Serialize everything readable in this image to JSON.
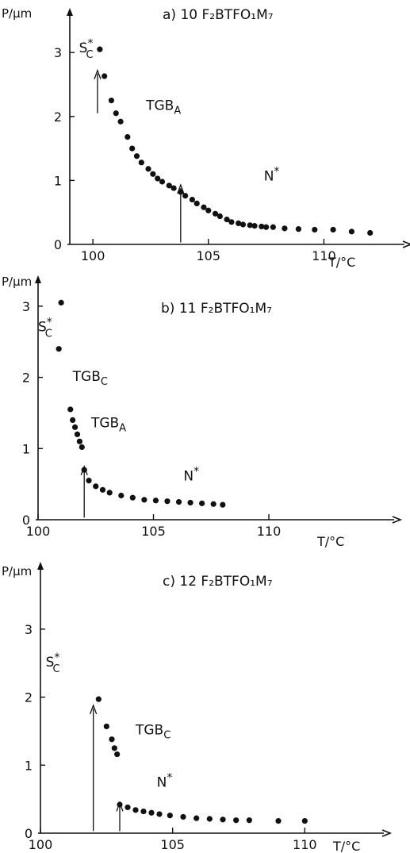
{
  "chart_data": [
    {
      "type": "scatter",
      "title": "a)  10 F₂BTFO₁M₇",
      "xlabel": "T/°C",
      "ylabel": "P/µm",
      "xlim": [
        99,
        112.8
      ],
      "ylim": [
        0,
        3.3
      ],
      "xticks": [
        100,
        105,
        110
      ],
      "yticks": [
        0,
        1,
        2,
        3
      ],
      "x_tick_labels": [
        "100",
        "105",
        "110"
      ],
      "y_tick_labels": [
        "0",
        "1",
        "2",
        "3"
      ],
      "phase_labels": [
        {
          "text": "S",
          "sub": "C",
          "sup": "*",
          "x": 99.4,
          "y": 3.0
        },
        {
          "text": "TGB",
          "sub": "A",
          "sup": "",
          "x": 102.3,
          "y": 2.1
        },
        {
          "text": "N",
          "sub": "",
          "sup": "*",
          "x": 107.4,
          "y": 1.0
        }
      ],
      "arrows": [
        {
          "x": 100.2,
          "y_from": 2.05,
          "y_to": 2.72
        },
        {
          "x": 103.8,
          "y_from": 0.03,
          "y_to": 0.93
        }
      ],
      "points": [
        {
          "x": 100.3,
          "y": 3.05
        },
        {
          "x": 100.5,
          "y": 2.63
        },
        {
          "x": 100.8,
          "y": 2.25
        },
        {
          "x": 101.0,
          "y": 2.05
        },
        {
          "x": 101.2,
          "y": 1.92
        },
        {
          "x": 101.5,
          "y": 1.68
        },
        {
          "x": 101.7,
          "y": 1.5
        },
        {
          "x": 101.9,
          "y": 1.38
        },
        {
          "x": 102.1,
          "y": 1.28
        },
        {
          "x": 102.4,
          "y": 1.18
        },
        {
          "x": 102.6,
          "y": 1.1
        },
        {
          "x": 102.8,
          "y": 1.03
        },
        {
          "x": 103.0,
          "y": 0.98
        },
        {
          "x": 103.3,
          "y": 0.92
        },
        {
          "x": 103.5,
          "y": 0.88
        },
        {
          "x": 103.8,
          "y": 0.82
        },
        {
          "x": 104.0,
          "y": 0.76
        },
        {
          "x": 104.3,
          "y": 0.7
        },
        {
          "x": 104.5,
          "y": 0.64
        },
        {
          "x": 104.8,
          "y": 0.58
        },
        {
          "x": 105.0,
          "y": 0.53
        },
        {
          "x": 105.3,
          "y": 0.48
        },
        {
          "x": 105.5,
          "y": 0.44
        },
        {
          "x": 105.8,
          "y": 0.39
        },
        {
          "x": 106.0,
          "y": 0.35
        },
        {
          "x": 106.3,
          "y": 0.33
        },
        {
          "x": 106.5,
          "y": 0.31
        },
        {
          "x": 106.8,
          "y": 0.3
        },
        {
          "x": 107.0,
          "y": 0.29
        },
        {
          "x": 107.3,
          "y": 0.28
        },
        {
          "x": 107.5,
          "y": 0.27
        },
        {
          "x": 107.8,
          "y": 0.27
        },
        {
          "x": 108.3,
          "y": 0.25
        },
        {
          "x": 108.9,
          "y": 0.24
        },
        {
          "x": 109.6,
          "y": 0.23
        },
        {
          "x": 110.4,
          "y": 0.23
        },
        {
          "x": 111.2,
          "y": 0.2
        },
        {
          "x": 112.0,
          "y": 0.18
        }
      ]
    },
    {
      "type": "scatter",
      "title": "b)  11 F₂BTFO₁M₇",
      "xlabel": "T/°C",
      "ylabel": "P/µm",
      "xlim": [
        100,
        114.5
      ],
      "ylim": [
        0,
        3.4
      ],
      "xticks": [
        100,
        105,
        110
      ],
      "yticks": [
        0,
        1,
        2,
        3
      ],
      "x_tick_labels": [
        "100",
        "105",
        "110"
      ],
      "y_tick_labels": [
        "0",
        "1",
        "2",
        "3"
      ],
      "phase_labels": [
        {
          "text": "S",
          "sub": "C",
          "sup": "*",
          "x": 100.0,
          "y": 2.65
        },
        {
          "text": "TGB",
          "sub": "C",
          "sup": "",
          "x": 101.5,
          "y": 1.95
        },
        {
          "text": "TGB",
          "sub": "A",
          "sup": "",
          "x": 102.3,
          "y": 1.3
        },
        {
          "text": "N",
          "sub": "",
          "sup": "*",
          "x": 106.3,
          "y": 0.55
        }
      ],
      "arrows": [
        {
          "x": 102.0,
          "y_from": 0.03,
          "y_to": 0.75
        }
      ],
      "points": [
        {
          "x": 101.0,
          "y": 3.05
        },
        {
          "x": 100.9,
          "y": 2.4
        },
        {
          "x": 101.4,
          "y": 1.55
        },
        {
          "x": 101.5,
          "y": 1.4
        },
        {
          "x": 101.6,
          "y": 1.3
        },
        {
          "x": 101.7,
          "y": 1.2
        },
        {
          "x": 101.8,
          "y": 1.1
        },
        {
          "x": 101.9,
          "y": 1.02
        },
        {
          "x": 102.0,
          "y": 0.7
        },
        {
          "x": 102.2,
          "y": 0.55
        },
        {
          "x": 102.5,
          "y": 0.47
        },
        {
          "x": 102.8,
          "y": 0.42
        },
        {
          "x": 103.1,
          "y": 0.38
        },
        {
          "x": 103.6,
          "y": 0.34
        },
        {
          "x": 104.1,
          "y": 0.31
        },
        {
          "x": 104.6,
          "y": 0.28
        },
        {
          "x": 105.1,
          "y": 0.27
        },
        {
          "x": 105.6,
          "y": 0.26
        },
        {
          "x": 106.1,
          "y": 0.25
        },
        {
          "x": 106.6,
          "y": 0.24
        },
        {
          "x": 107.1,
          "y": 0.23
        },
        {
          "x": 107.6,
          "y": 0.22
        },
        {
          "x": 108.0,
          "y": 0.21
        }
      ]
    },
    {
      "type": "scatter",
      "title": "c)  12 F₂BTFO₁M₇",
      "xlabel": "T/°C",
      "ylabel": "P/µm",
      "xlim": [
        100,
        112
      ],
      "ylim": [
        0,
        3.5
      ],
      "xticks": [
        100,
        105,
        110
      ],
      "yticks": [
        0,
        1,
        2,
        3
      ],
      "x_tick_labels": [
        "100",
        "105",
        "110"
      ],
      "y_tick_labels": [
        "0",
        "1",
        "2",
        "3"
      ],
      "phase_labels": [
        {
          "text": "S",
          "sub": "C",
          "sup": "*",
          "x": 100.2,
          "y": 2.45
        },
        {
          "text": "TGB",
          "sub": "C",
          "sup": "",
          "x": 103.6,
          "y": 1.45
        },
        {
          "text": "N",
          "sub": "",
          "sup": "*",
          "x": 104.4,
          "y": 0.68
        }
      ],
      "arrows": [
        {
          "x": 102.0,
          "y_from": 0.03,
          "y_to": 1.88
        },
        {
          "x": 103.0,
          "y_from": 0.03,
          "y_to": 0.45
        }
      ],
      "points": [
        {
          "x": 102.2,
          "y": 1.97
        },
        {
          "x": 102.5,
          "y": 1.57
        },
        {
          "x": 102.7,
          "y": 1.38
        },
        {
          "x": 102.8,
          "y": 1.25
        },
        {
          "x": 102.9,
          "y": 1.16
        },
        {
          "x": 103.0,
          "y": 0.42
        },
        {
          "x": 103.3,
          "y": 0.38
        },
        {
          "x": 103.6,
          "y": 0.34
        },
        {
          "x": 103.9,
          "y": 0.32
        },
        {
          "x": 104.2,
          "y": 0.3
        },
        {
          "x": 104.5,
          "y": 0.28
        },
        {
          "x": 104.9,
          "y": 0.26
        },
        {
          "x": 105.4,
          "y": 0.24
        },
        {
          "x": 105.9,
          "y": 0.22
        },
        {
          "x": 106.4,
          "y": 0.21
        },
        {
          "x": 106.9,
          "y": 0.2
        },
        {
          "x": 107.4,
          "y": 0.19
        },
        {
          "x": 107.9,
          "y": 0.19
        },
        {
          "x": 109.0,
          "y": 0.18
        },
        {
          "x": 110.0,
          "y": 0.18
        }
      ]
    }
  ]
}
